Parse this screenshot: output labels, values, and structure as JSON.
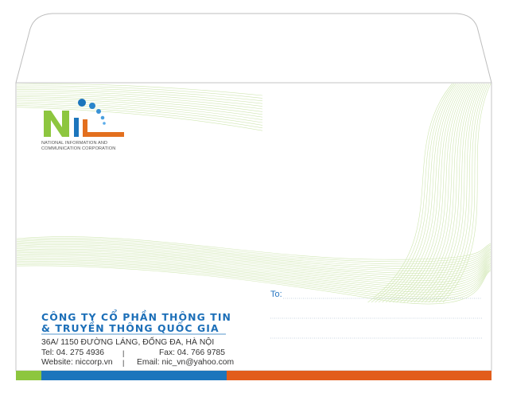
{
  "logo": {
    "subtitle_line1": "NATIONAL INFORMATION AND",
    "subtitle_line2": "COMMUNICATION CORPORATION",
    "colors": {
      "green": "#8dc63f",
      "blue": "#1c75bc",
      "orange": "#e36f1e"
    }
  },
  "company": {
    "name_line1": "CÔNG TY CỔ PHẦN THÔNG TIN",
    "name_line2": "& TRUYỀN THÔNG QUỐC GIA",
    "address": "36A/ 1150 ĐƯỜNG LÁNG, ĐỐNG ĐA, HÀ NỘI",
    "tel": "Tel: 04. 275 4936",
    "fax": "Fax: 04. 766 9785",
    "website": "Website: niccorp.vn",
    "email": "Email: nic_vn@yahoo.com",
    "separator": "|"
  },
  "recipient": {
    "label": "To:"
  },
  "colors": {
    "stripe_green": "#8dc63f",
    "stripe_blue": "#1c75bc",
    "stripe_orange": "#e25d1b",
    "wave_lines": "#cfe6b0",
    "text_blue": "#1c6fb8"
  }
}
